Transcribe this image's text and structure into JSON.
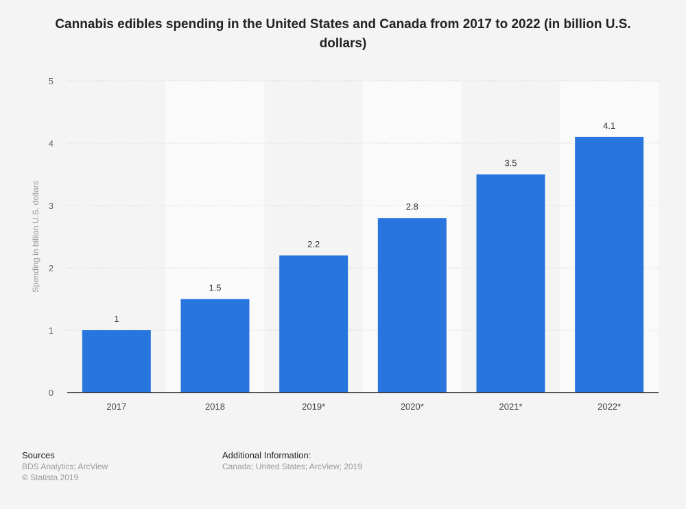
{
  "chart_data": {
    "type": "bar",
    "title": "Cannabis edibles spending in the United States and Canada from 2017 to 2022 (in billion U.S. dollars)",
    "xlabel": "",
    "ylabel": "Spending in billion U.S. dollars",
    "categories": [
      "2017",
      "2018",
      "2019*",
      "2020*",
      "2021*",
      "2022*"
    ],
    "values": [
      1,
      1.5,
      2.2,
      2.8,
      3.5,
      4.1
    ],
    "data_labels": [
      "1",
      "1.5",
      "2.2",
      "2.8",
      "3.5",
      "4.1"
    ],
    "ylim": [
      0,
      5
    ],
    "yticks": [
      "0",
      "1",
      "2",
      "3",
      "4",
      "5"
    ],
    "grid": true,
    "legend": "none",
    "bar_color": "#2876dd"
  },
  "footer": {
    "sources_heading": "Sources",
    "sources": "BDS Analytics; ArcView",
    "copyright": "© Statista 2019",
    "additional_heading": "Additional Information:",
    "additional": "Canada; United States; ArcView; 2019"
  }
}
